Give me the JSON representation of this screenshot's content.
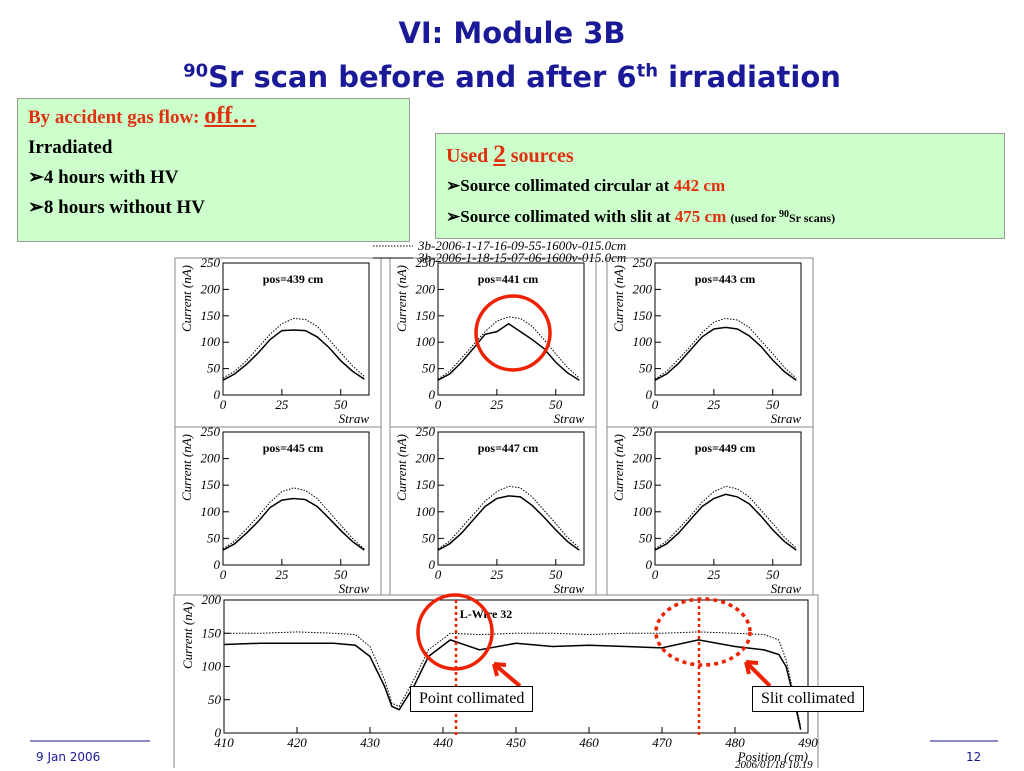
{
  "header": {
    "title_line1": "VI: Module 3B",
    "title_line2": {
      "sup1": "90",
      "text1": "Sr scan before and after 6",
      "sup2": "th",
      "text2": "irradiation"
    }
  },
  "left_box": {
    "line1": "By accident gas flow:",
    "line1_emph": "off…",
    "line2": "Irradiated",
    "bullets": [
      "4 hours with HV",
      "8 hours without HV"
    ]
  },
  "right_box": {
    "line1_a": "Used",
    "line1_num": "2",
    "line1_b": "sources",
    "bullet1_text": "Source collimated circular at",
    "bullet1_value": "442 cm",
    "bullet2_text": "Source collimated with slit at",
    "bullet2_value": "475 cm",
    "bullet2_note_a": "(used for",
    "bullet2_note_sup": "90",
    "bullet2_note_b": "Sr scans)"
  },
  "annotations": {
    "point": "Point collimated",
    "slit": "Slit collimated"
  },
  "footer": {
    "date": "9 Jan 2006",
    "page": "12",
    "stamp": "2006/01/18   10.19"
  },
  "chart_data": [
    {
      "type": "line",
      "title": "pos=439 cm",
      "x_label": "Straw",
      "y_label": "Current (nA)",
      "x": [
        0,
        5,
        10,
        15,
        20,
        25,
        30,
        35,
        40,
        45,
        50,
        55,
        60
      ],
      "xlim": [
        0,
        62
      ],
      "ylim": [
        0,
        250
      ],
      "xticks": [
        0,
        25,
        50
      ],
      "yticks": [
        0,
        50,
        100,
        150,
        200,
        250
      ],
      "series": [
        {
          "name": "3b-2006-1-17-16-09-55-1600v-015.0cm",
          "color": "#000000",
          "style": "dotted",
          "values": [
            32,
            45,
            65,
            90,
            115,
            135,
            145,
            143,
            130,
            105,
            80,
            55,
            35
          ]
        },
        {
          "name": "3b-2006-1-18-15-07-06-1600v-015.0cm",
          "color": "#000000",
          "style": "solid",
          "values": [
            28,
            40,
            58,
            80,
            105,
            122,
            123,
            122,
            110,
            90,
            65,
            45,
            30
          ]
        }
      ]
    },
    {
      "type": "line",
      "title": "pos=441 cm",
      "x_label": "Straw",
      "y_label": "Current (nA)",
      "x": [
        0,
        5,
        10,
        15,
        20,
        25,
        30,
        35,
        40,
        45,
        50,
        55,
        60
      ],
      "xlim": [
        0,
        62
      ],
      "ylim": [
        0,
        250
      ],
      "xticks": [
        0,
        25,
        50
      ],
      "yticks": [
        0,
        50,
        100,
        150,
        200,
        250
      ],
      "series": [
        {
          "color": "#000000",
          "style": "dotted",
          "values": [
            30,
            45,
            70,
            95,
            120,
            140,
            148,
            145,
            130,
            105,
            78,
            52,
            32
          ]
        },
        {
          "color": "#000000",
          "style": "solid",
          "values": [
            28,
            40,
            62,
            88,
            115,
            120,
            135,
            120,
            105,
            88,
            62,
            42,
            28
          ]
        }
      ]
    },
    {
      "type": "line",
      "title": "pos=443 cm",
      "x_label": "Straw",
      "y_label": "Current (nA)",
      "x": [
        0,
        5,
        10,
        15,
        20,
        25,
        30,
        35,
        40,
        45,
        50,
        55,
        60
      ],
      "xlim": [
        0,
        62
      ],
      "ylim": [
        0,
        250
      ],
      "xticks": [
        0,
        25,
        50
      ],
      "yticks": [
        0,
        50,
        100,
        150,
        200,
        250
      ],
      "series": [
        {
          "color": "#000000",
          "style": "dotted",
          "values": [
            30,
            45,
            68,
            92,
            118,
            138,
            145,
            142,
            128,
            103,
            78,
            52,
            32
          ]
        },
        {
          "color": "#000000",
          "style": "solid",
          "values": [
            28,
            40,
            60,
            85,
            110,
            125,
            128,
            125,
            112,
            92,
            66,
            44,
            28
          ]
        }
      ]
    },
    {
      "type": "line",
      "title": "pos=445 cm",
      "x_label": "Straw",
      "y_label": "Current (nA)",
      "x": [
        0,
        5,
        10,
        15,
        20,
        25,
        30,
        35,
        40,
        45,
        50,
        55,
        60
      ],
      "xlim": [
        0,
        62
      ],
      "ylim": [
        0,
        250
      ],
      "xticks": [
        0,
        25,
        50
      ],
      "yticks": [
        0,
        50,
        100,
        150,
        200,
        250
      ],
      "series": [
        {
          "color": "#000000",
          "style": "dotted",
          "values": [
            30,
            45,
            68,
            92,
            118,
            138,
            145,
            140,
            125,
            100,
            75,
            50,
            30
          ]
        },
        {
          "color": "#000000",
          "style": "solid",
          "values": [
            28,
            40,
            60,
            82,
            108,
            122,
            125,
            123,
            110,
            88,
            65,
            44,
            28
          ]
        }
      ]
    },
    {
      "type": "line",
      "title": "pos=447 cm",
      "x_label": "Straw",
      "y_label": "Current (nA)",
      "x": [
        0,
        5,
        10,
        15,
        20,
        25,
        30,
        35,
        40,
        45,
        50,
        55,
        60
      ],
      "xlim": [
        0,
        62
      ],
      "ylim": [
        0,
        250
      ],
      "xticks": [
        0,
        25,
        50
      ],
      "yticks": [
        0,
        50,
        100,
        150,
        200,
        250
      ],
      "series": [
        {
          "color": "#000000",
          "style": "dotted",
          "values": [
            30,
            45,
            70,
            95,
            120,
            138,
            148,
            145,
            128,
            103,
            78,
            52,
            32
          ]
        },
        {
          "color": "#000000",
          "style": "solid",
          "values": [
            28,
            40,
            60,
            85,
            110,
            125,
            130,
            128,
            112,
            90,
            66,
            44,
            28
          ]
        }
      ]
    },
    {
      "type": "line",
      "title": "pos=449 cm",
      "x_label": "Straw",
      "y_label": "Current (nA)",
      "x": [
        0,
        5,
        10,
        15,
        20,
        25,
        30,
        35,
        40,
        45,
        50,
        55,
        60
      ],
      "xlim": [
        0,
        62
      ],
      "ylim": [
        0,
        250
      ],
      "xticks": [
        0,
        25,
        50
      ],
      "yticks": [
        0,
        50,
        100,
        150,
        200,
        250
      ],
      "series": [
        {
          "color": "#000000",
          "style": "dotted",
          "values": [
            30,
            45,
            68,
            92,
            118,
            138,
            148,
            143,
            128,
            103,
            78,
            52,
            32
          ]
        },
        {
          "color": "#000000",
          "style": "solid",
          "values": [
            28,
            40,
            60,
            85,
            110,
            125,
            133,
            128,
            115,
            92,
            66,
            44,
            28
          ]
        }
      ]
    },
    {
      "type": "line",
      "title": "L-Wire 32",
      "x_label": "Position (cm)",
      "y_label": "Current (nA)",
      "x": [
        410,
        415,
        420,
        425,
        428,
        430,
        432,
        433,
        434,
        436,
        438,
        441,
        445,
        450,
        455,
        460,
        465,
        470,
        475,
        480,
        484,
        486,
        487,
        488,
        489
      ],
      "xlim": [
        410,
        490
      ],
      "ylim": [
        0,
        200
      ],
      "xticks": [
        410,
        420,
        430,
        440,
        450,
        460,
        470,
        480,
        490
      ],
      "yticks": [
        0,
        50,
        100,
        150,
        200
      ],
      "series": [
        {
          "color": "#000000",
          "style": "dotted",
          "values": [
            150,
            150,
            152,
            150,
            148,
            130,
            80,
            45,
            40,
            80,
            125,
            150,
            148,
            150,
            150,
            148,
            150,
            150,
            152,
            150,
            148,
            140,
            110,
            60,
            10
          ]
        },
        {
          "color": "#000000",
          "style": "solid",
          "values": [
            133,
            135,
            135,
            135,
            132,
            115,
            70,
            40,
            35,
            70,
            115,
            140,
            125,
            135,
            130,
            132,
            130,
            128,
            140,
            130,
            125,
            118,
            100,
            55,
            5
          ]
        }
      ]
    }
  ]
}
